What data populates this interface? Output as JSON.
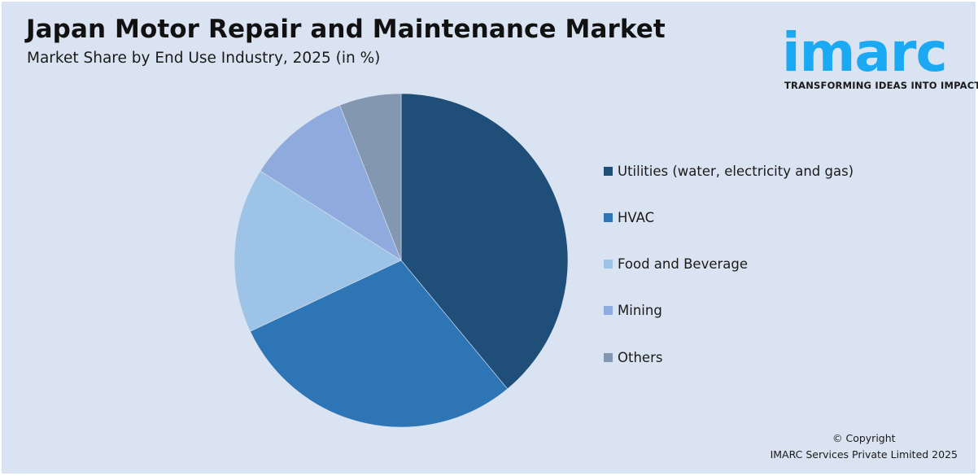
{
  "header": {
    "title": "Japan Motor Repair and Maintenance Market",
    "subtitle": "Market Share by End Use Industry, 2025 (in %)"
  },
  "logo": {
    "wordmark": "imarc",
    "tagline": "TRANSFORMING IDEAS INTO IMPACT",
    "color": "#1aa9f2"
  },
  "footer": {
    "line1": "© Copyright",
    "line2": "IMARC Services Private Limited 2025"
  },
  "colors": {
    "background": "#dae3f1"
  },
  "chart_data": {
    "type": "pie",
    "title": "Japan Motor Repair and Maintenance Market",
    "subtitle": "Market Share by End Use Industry, 2025 (in %)",
    "categories": [
      "Utilities (water, electricity and gas)",
      "HVAC",
      "Food and Beverage",
      "Mining",
      "Others"
    ],
    "values": [
      39,
      29,
      16,
      10,
      6
    ],
    "colors": [
      "#1f4e79",
      "#2e75b6",
      "#9dc3e6",
      "#8faadc",
      "#8497b0"
    ],
    "start_angle": "12 o'clock, clockwise",
    "data_labels": false,
    "legend_position": "right"
  }
}
